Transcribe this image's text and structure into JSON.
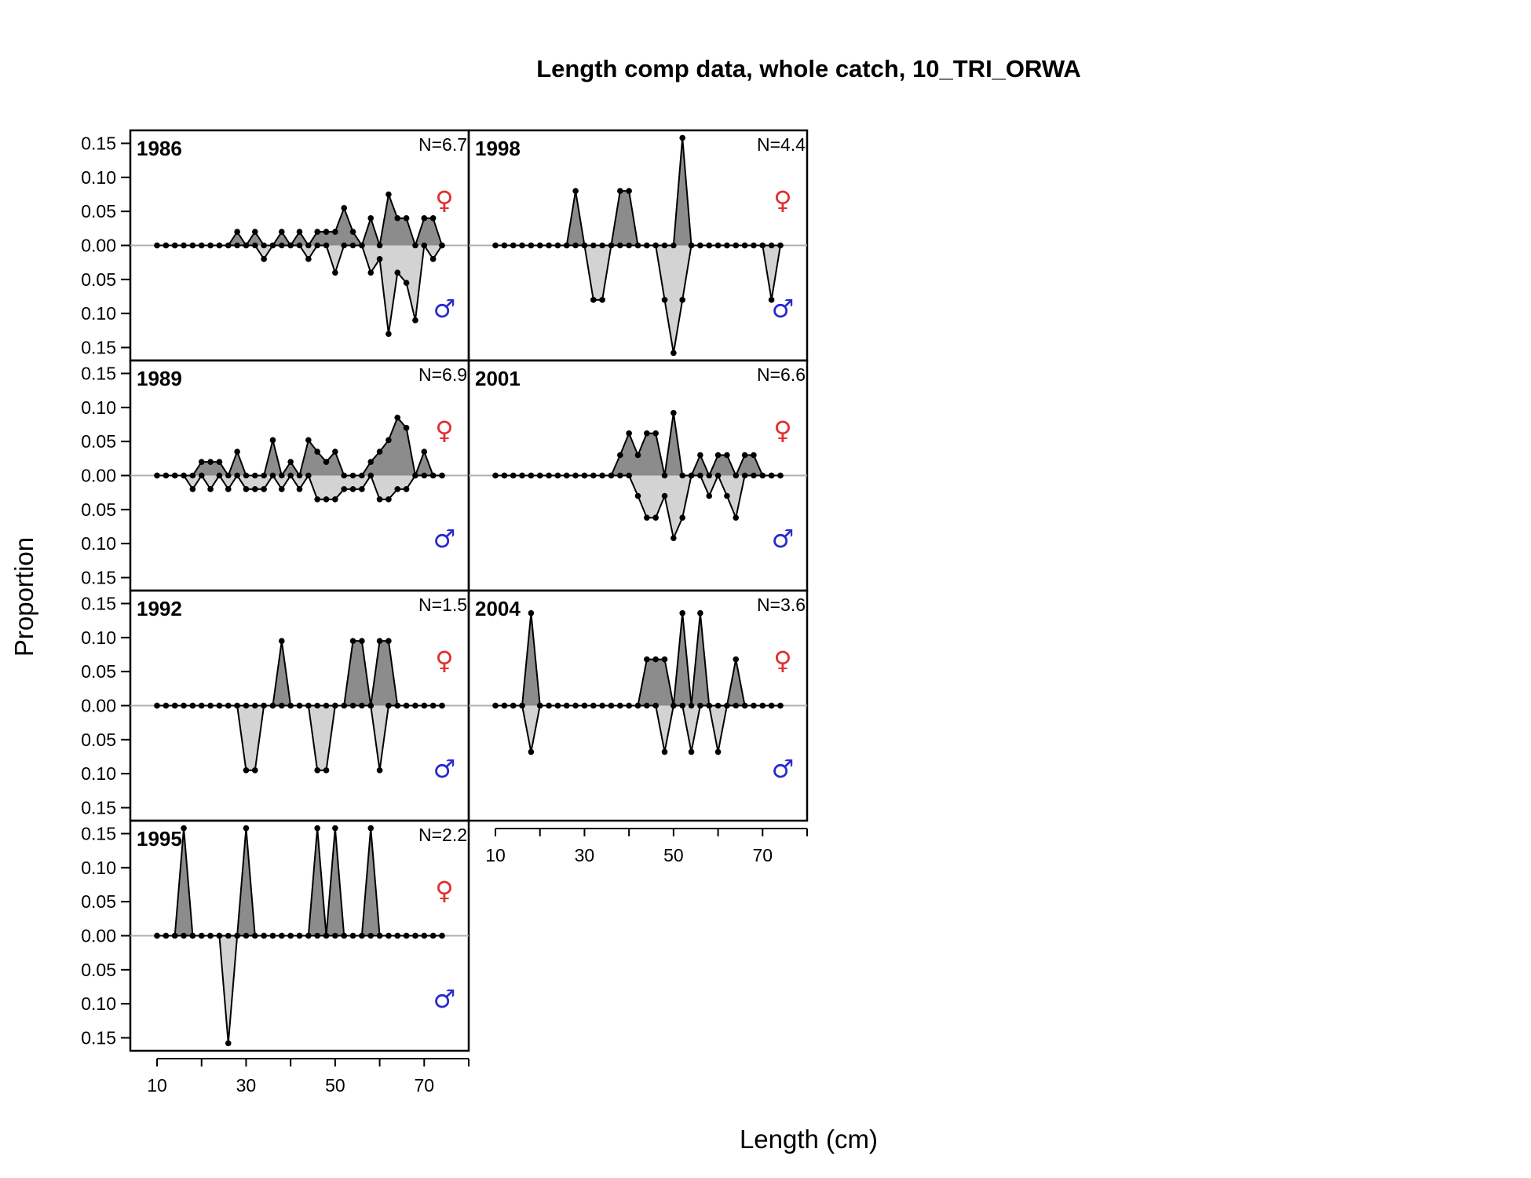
{
  "chart_data": {
    "type": "area",
    "title": "Length comp data, whole catch, 10_TRI_ORWA",
    "xlabel": "Length (cm)",
    "ylabel": "Proportion",
    "xlim": [
      4,
      80
    ],
    "ylim": [
      -0.15,
      0.15
    ],
    "y_ticks": [
      "0.15",
      "0.10",
      "0.05",
      "0.00",
      "0.05",
      "0.10",
      "0.15"
    ],
    "x_ticks": [
      "10",
      "30",
      "50",
      "70"
    ],
    "female_symbol": "♀",
    "male_symbol": "♂",
    "colors": {
      "female_fill": "#8c8c8c",
      "male_fill": "#d3d3d3",
      "female_symbol": "#e03030",
      "male_symbol": "#2a2ad0",
      "zero_line": "#b0b0b0"
    },
    "x": [
      10,
      12,
      14,
      16,
      18,
      20,
      22,
      24,
      26,
      28,
      30,
      32,
      34,
      36,
      38,
      40,
      42,
      44,
      46,
      48,
      50,
      52,
      54,
      56,
      58,
      60,
      62,
      64,
      66,
      68,
      70,
      72,
      74
    ],
    "panels": [
      {
        "year": "1986",
        "n": "N=6.7",
        "female": [
          0,
          0,
          0,
          0,
          0,
          0,
          0,
          0,
          0,
          0.02,
          0,
          0.02,
          0,
          0,
          0.02,
          0,
          0.02,
          0,
          0.02,
          0.02,
          0.02,
          0.055,
          0.02,
          0,
          0.04,
          0,
          0.075,
          0.04,
          0.04,
          0,
          0.04,
          0.04,
          0
        ],
        "male": [
          0,
          0,
          0,
          0,
          0,
          0,
          0,
          0,
          0,
          0,
          0,
          0,
          0.02,
          0,
          0,
          0,
          0,
          0.02,
          0,
          0,
          0.04,
          0,
          0,
          0,
          0.04,
          0.02,
          0.13,
          0.04,
          0.055,
          0.11,
          0,
          0.02,
          0
        ]
      },
      {
        "year": "1998",
        "n": "N=4.4",
        "female": [
          0,
          0,
          0,
          0,
          0,
          0,
          0,
          0,
          0,
          0.08,
          0,
          0,
          0,
          0,
          0.08,
          0.08,
          0,
          0,
          0,
          0,
          0,
          0.158,
          0,
          0,
          0,
          0,
          0,
          0,
          0,
          0,
          0,
          0,
          0
        ],
        "male": [
          0,
          0,
          0,
          0,
          0,
          0,
          0,
          0,
          0,
          0,
          0,
          0.08,
          0.08,
          0,
          0,
          0,
          0,
          0,
          0,
          0.08,
          0.158,
          0.08,
          0,
          0,
          0,
          0,
          0,
          0,
          0,
          0,
          0,
          0.08,
          0
        ]
      },
      {
        "year": "1989",
        "n": "N=6.9",
        "female": [
          0,
          0,
          0,
          0,
          0,
          0.02,
          0.02,
          0.02,
          0,
          0.035,
          0,
          0,
          0,
          0.052,
          0,
          0.02,
          0,
          0.052,
          0.035,
          0.02,
          0.035,
          0,
          0,
          0,
          0.02,
          0.035,
          0.052,
          0.085,
          0.07,
          0,
          0.035,
          0,
          0
        ],
        "male": [
          0,
          0,
          0,
          0,
          0.02,
          0,
          0.02,
          0,
          0.02,
          0,
          0.02,
          0.02,
          0.02,
          0,
          0.02,
          0,
          0.02,
          0,
          0.035,
          0.035,
          0.035,
          0.02,
          0.02,
          0.02,
          0,
          0.035,
          0.035,
          0.02,
          0.02,
          0,
          0,
          0,
          0
        ]
      },
      {
        "year": "2001",
        "n": "N=6.6",
        "female": [
          0,
          0,
          0,
          0,
          0,
          0,
          0,
          0,
          0,
          0,
          0,
          0,
          0,
          0,
          0.03,
          0.062,
          0.03,
          0.062,
          0.062,
          0,
          0.092,
          0,
          0,
          0.03,
          0,
          0.03,
          0.03,
          0,
          0.03,
          0.03,
          0,
          0,
          0
        ],
        "male": [
          0,
          0,
          0,
          0,
          0,
          0,
          0,
          0,
          0,
          0,
          0,
          0,
          0,
          0,
          0,
          0,
          0.03,
          0.062,
          0.062,
          0.03,
          0.092,
          0.062,
          0,
          0,
          0.03,
          0,
          0.03,
          0.062,
          0,
          0,
          0,
          0,
          0
        ]
      },
      {
        "year": "1992",
        "n": "N=1.5",
        "female": [
          0,
          0,
          0,
          0,
          0,
          0,
          0,
          0,
          0,
          0,
          0,
          0,
          0,
          0,
          0.095,
          0,
          0,
          0,
          0,
          0,
          0,
          0,
          0.095,
          0.095,
          0,
          0.095,
          0.095,
          0,
          0,
          0,
          0,
          0,
          0
        ],
        "male": [
          0,
          0,
          0,
          0,
          0,
          0,
          0,
          0,
          0,
          0,
          0.095,
          0.095,
          0,
          0,
          0,
          0,
          0,
          0,
          0.095,
          0.095,
          0,
          0,
          0,
          0,
          0,
          0.095,
          0,
          0,
          0,
          0,
          0,
          0,
          0
        ]
      },
      {
        "year": "2004",
        "n": "N=3.6",
        "female": [
          0,
          0,
          0,
          0,
          0.136,
          0,
          0,
          0,
          0,
          0,
          0,
          0,
          0,
          0,
          0,
          0,
          0,
          0.068,
          0.068,
          0.068,
          0,
          0.136,
          0,
          0.136,
          0,
          0,
          0,
          0.068,
          0,
          0,
          0,
          0,
          0
        ],
        "male": [
          0,
          0,
          0,
          0,
          0.068,
          0,
          0,
          0,
          0,
          0,
          0,
          0,
          0,
          0,
          0,
          0,
          0,
          0,
          0,
          0.068,
          0,
          0,
          0.068,
          0,
          0,
          0.068,
          0,
          0,
          0,
          0,
          0,
          0,
          0
        ]
      },
      {
        "year": "1995",
        "n": "N=2.2",
        "female": [
          0,
          0,
          0,
          0.158,
          0,
          0,
          0,
          0,
          0,
          0,
          0.158,
          0,
          0,
          0,
          0,
          0,
          0,
          0,
          0.158,
          0,
          0.158,
          0,
          0,
          0,
          0.158,
          0,
          0,
          0,
          0,
          0,
          0,
          0,
          0
        ],
        "male": [
          0,
          0,
          0,
          0,
          0,
          0,
          0,
          0,
          0.158,
          0,
          0,
          0,
          0,
          0,
          0,
          0,
          0,
          0,
          0,
          0,
          0,
          0,
          0,
          0,
          0,
          0,
          0,
          0,
          0,
          0,
          0,
          0,
          0
        ]
      }
    ]
  }
}
